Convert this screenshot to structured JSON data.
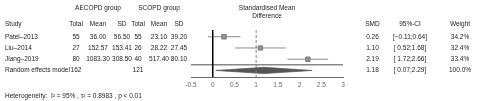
{
  "chart_data": {
    "type": "forest",
    "group_headers": [
      "AECOPD group",
      "SCOPD group"
    ],
    "plot_header": [
      "Standardised Mean",
      "Difference"
    ],
    "columns": [
      "Study",
      "Total",
      "Mean",
      "SD",
      "Total",
      "Mean",
      "SD",
      "SMD",
      "95%-CI",
      "Weight"
    ],
    "categories": [
      "Patel–2013",
      "Liu–2014",
      "Jiang–2019"
    ],
    "aecopd_total": [
      55,
      27,
      80
    ],
    "aecopd_mean": [
      "36.00",
      "152.57",
      "1083.30"
    ],
    "aecopd_sd": [
      "56.50",
      "153.41",
      "308.50"
    ],
    "scopd_total": [
      55,
      26,
      40
    ],
    "scopd_mean": [
      "23.10",
      "28.22",
      "517.40"
    ],
    "scopd_sd": [
      "39.20",
      "27.45",
      "80.10"
    ],
    "values": [
      0.26,
      1.1,
      2.19
    ],
    "value_labels": [
      "0.26",
      "1.10",
      "2.19"
    ],
    "ci_low": [
      -0.11,
      0.52,
      1.72
    ],
    "ci_high": [
      0.64,
      1.68,
      2.66
    ],
    "ci_labels": [
      "[−0.11;0.64]",
      "[ 0.52;1.68]",
      "[ 1.72;2.66]"
    ],
    "weights": [
      34.2,
      32.4,
      33.4
    ],
    "weight_labels": [
      "34.2%",
      "32.4%",
      "33.4%"
    ],
    "summary": {
      "name": "Random effects model",
      "aecopd_total": 162,
      "scopd_total": 121,
      "value": 1.18,
      "value_label": "1.18",
      "ci_low": 0.07,
      "ci_high": 2.29,
      "ci_label": "[ 0.07;2.29]",
      "weight_label": "100.0%"
    },
    "annotation": "Heterogeneity:  I² = 95% , τ² = 0.8983 , p < 0.01",
    "xlim": [
      -0.5,
      3.0
    ],
    "xticks": [
      -0.5,
      0,
      0.5,
      1,
      1.5,
      2,
      2.5,
      3
    ],
    "reference_lines": [
      {
        "value": 0,
        "line_style": "solid",
        "color": "#000000"
      },
      {
        "value": 1.0,
        "line_style": "dashed",
        "color": "#808080"
      }
    ],
    "separator_color": "#000000",
    "color": "#888888",
    "marker_color": "#999999",
    "marker_edge_color": "#666666",
    "diamond_color": "#555555",
    "grid": false
  }
}
